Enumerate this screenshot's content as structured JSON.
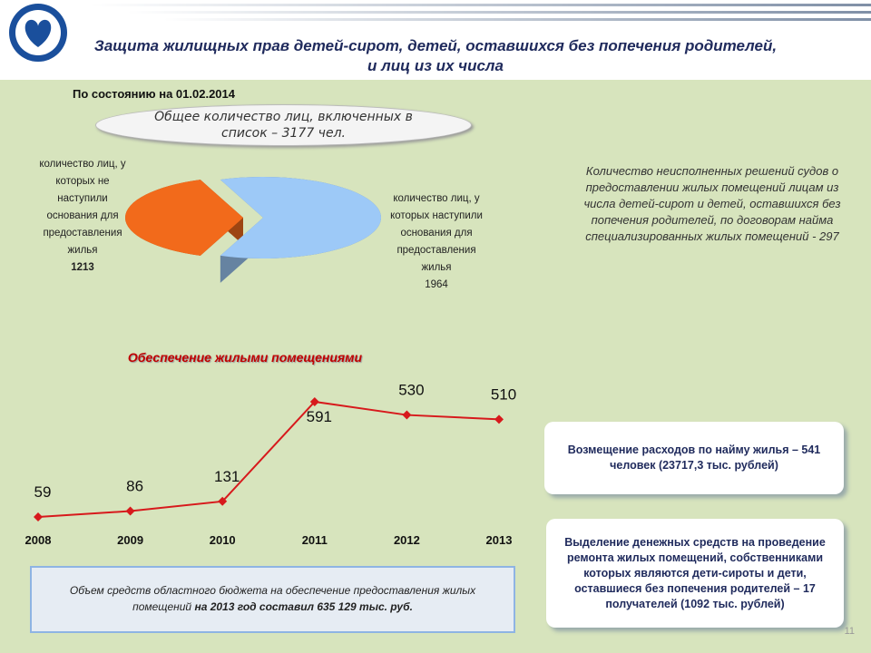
{
  "header": {
    "title": "Защита жилищных прав детей-сирот, детей, оставшихся без попечения родителей, и лиц из их числа"
  },
  "date": "По состоянию на 01.02.2014",
  "total": "Общее количество лиц, включенных в список – 3177 чел.",
  "chart_data": [
    {
      "type": "pie",
      "categories": [
        "количество лиц, у которых не наступили основания для предоставления жилья",
        "количество лиц, у которых наступили основания для предоставления жилья"
      ],
      "values": [
        1213,
        1964
      ],
      "colors": [
        "#f26a1b",
        "#9dc9f7"
      ]
    },
    {
      "type": "line",
      "title": "Обеспечение  жилыми помещениями",
      "categories": [
        "2008",
        "2009",
        "2010",
        "2011",
        "2012",
        "2013"
      ],
      "values": [
        59,
        86,
        131,
        591,
        530,
        510
      ],
      "color": "#d7191c"
    }
  ],
  "unfulfilled": "Количество неисполненных решений судов о предоставлении жилых помещений лицам из числа детей-сирот и детей, оставшихся без попечения родителей, по договорам найма специализированных жилых помещений  - 297",
  "boxes": [
    "Возмещение расходов по найму жилья – 541 человек (23717,3 тыс. рублей)",
    "Выделение денежных средств на проведение ремонта жилых помещений, собственниками которых являются дети-сироты и дети, оставшиеся без попечения родителей – 17 получателей (1092 тыс. рублей)"
  ],
  "budget_note": [
    "Объем средств областного бюджета на обеспечение предоставления жилых помещений ",
    "на 2013 год составил 635 129 тыс. руб."
  ],
  "page_number": "11"
}
